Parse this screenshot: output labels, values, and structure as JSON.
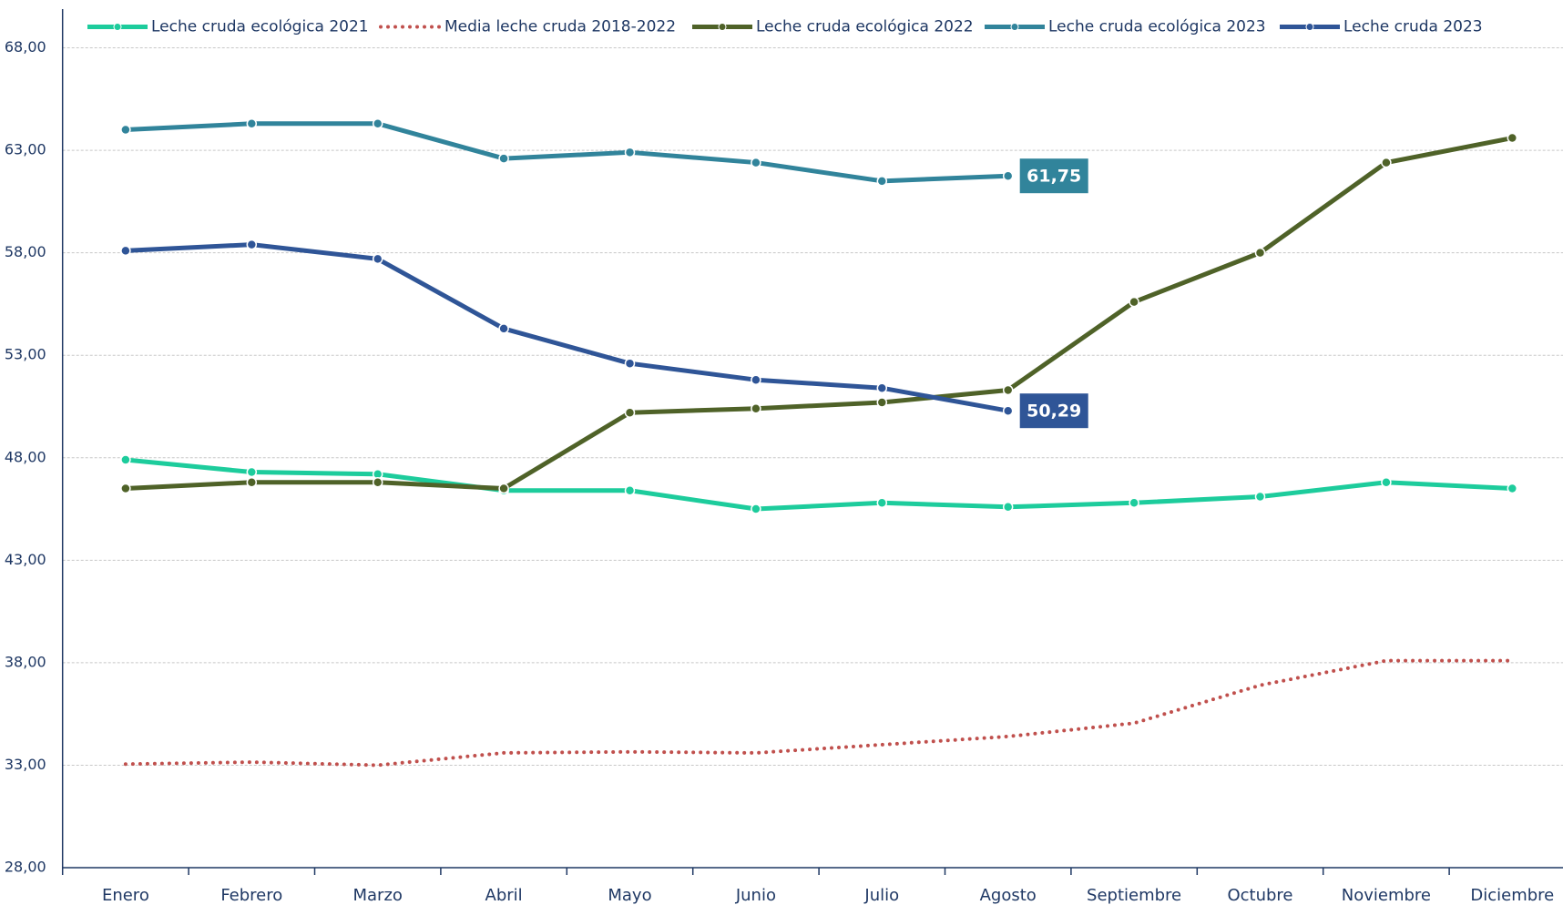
{
  "chart_data": {
    "type": "line",
    "categories": [
      "Enero",
      "Febrero",
      "Marzo",
      "Abril",
      "Mayo",
      "Junio",
      "Julio",
      "Agosto",
      "Septiembre",
      "Octubre",
      "Noviembre",
      "Diciembre"
    ],
    "ylim": [
      28,
      68
    ],
    "yticks": [
      {
        "value": 28,
        "label": "28,00"
      },
      {
        "value": 33,
        "label": "33,00"
      },
      {
        "value": 38,
        "label": "38,00"
      },
      {
        "value": 43,
        "label": "43,00"
      },
      {
        "value": 48,
        "label": "48,00"
      },
      {
        "value": 53,
        "label": "53,00"
      },
      {
        "value": 58,
        "label": "58,00"
      },
      {
        "value": 63,
        "label": "63,00"
      },
      {
        "value": 68,
        "label": "68,00"
      }
    ],
    "grid": true,
    "legend": "top",
    "series": [
      {
        "name": "Leche cruda ecológica 2021",
        "color": "#1dcc9c",
        "style": "solid",
        "markers": true,
        "values": [
          47.9,
          47.3,
          47.2,
          46.4,
          46.4,
          45.5,
          45.8,
          45.6,
          45.8,
          46.1,
          46.8,
          46.5
        ]
      },
      {
        "name": "Media leche cruda 2018-2022",
        "color": "#c0504d",
        "style": "dotted",
        "markers": false,
        "values": [
          33.05,
          33.15,
          33.0,
          33.6,
          33.65,
          33.6,
          34.0,
          34.4,
          35.05,
          36.9,
          38.1,
          38.1
        ]
      },
      {
        "name": "Leche cruda ecológica 2022",
        "color": "#4f6228",
        "style": "solid",
        "markers": true,
        "values": [
          46.5,
          46.8,
          46.8,
          46.5,
          50.2,
          50.4,
          50.7,
          51.3,
          55.6,
          58.0,
          62.4,
          63.6
        ]
      },
      {
        "name": "Leche cruda ecológica 2023",
        "color": "#31849b",
        "style": "solid",
        "markers": true,
        "values": [
          64.0,
          64.3,
          64.3,
          62.6,
          62.9,
          62.4,
          61.5,
          61.75,
          null,
          null,
          null,
          null
        ],
        "value_labels": [
          null,
          null,
          null,
          null,
          null,
          null,
          null,
          "61,75",
          null,
          null,
          null,
          null
        ]
      },
      {
        "name": "Leche cruda 2023",
        "color": "#2f5597",
        "style": "solid",
        "markers": true,
        "values": [
          58.1,
          58.4,
          57.7,
          54.3,
          52.6,
          51.8,
          51.4,
          50.29,
          null,
          null,
          null,
          null
        ],
        "value_labels": [
          null,
          null,
          null,
          null,
          null,
          null,
          null,
          "50,29",
          null,
          null,
          null,
          null
        ]
      }
    ]
  }
}
